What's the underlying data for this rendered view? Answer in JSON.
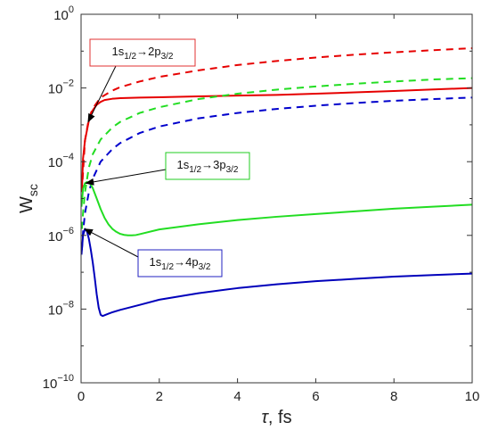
{
  "chart_data": {
    "type": "line",
    "xlabel": "τ, fs",
    "ylabel_main": "W",
    "ylabel_sub": "sc",
    "x_scale": "linear",
    "y_scale": "log",
    "xlim": [
      0,
      10
    ],
    "ylim": [
      1e-10,
      1
    ],
    "x_ticks": [
      0,
      2,
      4,
      6,
      8,
      10
    ],
    "x_tick_labels": [
      "0",
      "2",
      "4",
      "6",
      "8",
      "10"
    ],
    "y_ticks": [
      {
        "value": 1e-10,
        "base": "10",
        "exp": "−10"
      },
      {
        "value": 1e-08,
        "base": "10",
        "exp": "−8"
      },
      {
        "value": 1e-06,
        "base": "10",
        "exp": "−6"
      },
      {
        "value": 0.0001,
        "base": "10",
        "exp": "−4"
      },
      {
        "value": 0.01,
        "base": "10",
        "exp": "−2"
      },
      {
        "value": 1,
        "base": "10",
        "exp": "0"
      }
    ],
    "grid": false,
    "series": [
      {
        "color": "#e60000",
        "dash": "solid",
        "x": [
          0.02,
          0.05,
          0.1,
          0.2,
          0.3,
          0.4,
          0.5,
          0.6,
          0.8,
          1.0,
          1.5,
          2,
          3,
          4,
          5,
          6,
          7,
          8,
          9,
          10
        ],
        "y": [
          1.5e-05,
          0.00012,
          0.00038,
          0.0013,
          0.0025,
          0.0035,
          0.0042,
          0.0047,
          0.0051,
          0.0053,
          0.0055,
          0.0056,
          0.0059,
          0.0062,
          0.0065,
          0.007,
          0.0076,
          0.0083,
          0.0091,
          0.01
        ]
      },
      {
        "color": "#e60000",
        "dash": "dashed",
        "x": [
          0.02,
          0.1,
          0.2,
          0.3,
          0.5,
          0.8,
          1,
          1.5,
          2,
          3,
          4,
          5,
          6,
          7,
          8,
          9,
          10
        ],
        "y": [
          1.5e-05,
          0.00038,
          0.0015,
          0.0028,
          0.0055,
          0.0085,
          0.0105,
          0.015,
          0.02,
          0.03,
          0.042,
          0.054,
          0.067,
          0.08,
          0.093,
          0.106,
          0.12
        ]
      },
      {
        "color": "#22dd22",
        "dash": "dashed",
        "x": [
          0.02,
          0.05,
          0.1,
          0.2,
          0.3,
          0.5,
          0.8,
          1,
          1.5,
          2,
          3,
          4,
          5,
          6,
          7,
          8,
          9,
          10
        ],
        "y": [
          1.5e-06,
          4e-06,
          1.5e-05,
          7e-05,
          0.00016,
          0.0004,
          0.00085,
          0.0012,
          0.0021,
          0.003,
          0.005,
          0.007,
          0.009,
          0.011,
          0.013,
          0.015,
          0.017,
          0.0185
        ]
      },
      {
        "color": "#0000cc",
        "dash": "dashed",
        "x": [
          0.02,
          0.05,
          0.1,
          0.2,
          0.3,
          0.5,
          0.8,
          1,
          1.5,
          2,
          3,
          4,
          5,
          6,
          7,
          8,
          9,
          10
        ],
        "y": [
          4e-07,
          1.2e-06,
          4e-06,
          1.5e-05,
          3.5e-05,
          0.0001,
          0.00022,
          0.00032,
          0.0006,
          0.0009,
          0.0015,
          0.0021,
          0.0027,
          0.0033,
          0.0039,
          0.0045,
          0.005,
          0.0055
        ]
      },
      {
        "color": "#22dd22",
        "dash": "solid",
        "x": [
          0.01,
          0.05,
          0.1,
          0.15,
          0.2,
          0.25,
          0.3,
          0.4,
          0.5,
          0.6,
          0.7,
          0.8,
          0.9,
          1.0,
          1.1,
          1.2,
          1.3,
          1.4,
          1.5,
          2,
          3,
          4,
          5,
          6,
          7,
          8,
          9,
          10
        ],
        "y": [
          6e-06,
          1.8e-05,
          2.6e-05,
          2.8e-05,
          2.7e-05,
          2.4e-05,
          1.9e-05,
          1e-05,
          5.2e-06,
          3e-06,
          2e-06,
          1.5e-06,
          1.25e-06,
          1.1e-06,
          1.03e-06,
          1e-06,
          1e-06,
          1.02e-06,
          1.08e-06,
          1.45e-06,
          2e-06,
          2.6e-06,
          3.2e-06,
          3.8e-06,
          4.5e-06,
          5.3e-06,
          6e-06,
          6.8e-06
        ]
      },
      {
        "color": "#0000bb",
        "dash": "solid",
        "x": [
          0.01,
          0.05,
          0.1,
          0.15,
          0.2,
          0.25,
          0.3,
          0.35,
          0.4,
          0.45,
          0.5,
          0.55,
          0.6,
          0.7,
          0.8,
          1.0,
          1.5,
          2,
          3,
          4,
          5,
          6,
          7,
          8,
          9,
          10
        ],
        "y": [
          3e-07,
          1e-06,
          1.5e-06,
          1.3e-06,
          8e-07,
          4e-07,
          1.8e-07,
          7e-08,
          2.5e-08,
          1.1e-08,
          7e-09,
          6.5e-09,
          6.8e-09,
          7.5e-09,
          8.2e-09,
          9.5e-09,
          1.3e-08,
          1.8e-08,
          2.7e-08,
          3.7e-08,
          4.7e-08,
          5.7e-08,
          6.6e-08,
          7.6e-08,
          8.4e-08,
          9.2e-08
        ]
      }
    ],
    "annotations": [
      {
        "id": "ann-2p",
        "prefix": "1s",
        "sub1": "1/2",
        "arrow": "→",
        "mid": "2p",
        "sub2": "3/2",
        "border_color": "#e03030",
        "pointer_x": 0.18,
        "pointer_y": 0.0012
      },
      {
        "id": "ann-3p",
        "prefix": "1s",
        "sub1": "1/2",
        "arrow": "→",
        "mid": "3p",
        "sub2": "3/2",
        "border_color": "#22cc22",
        "pointer_x": 0.12,
        "pointer_y": 2.6e-05
      },
      {
        "id": "ann-4p",
        "prefix": "1s",
        "sub1": "1/2",
        "arrow": "→",
        "mid": "4p",
        "sub2": "3/2",
        "border_color": "#2020c0",
        "pointer_x": 0.09,
        "pointer_y": 1.5e-06
      }
    ]
  }
}
